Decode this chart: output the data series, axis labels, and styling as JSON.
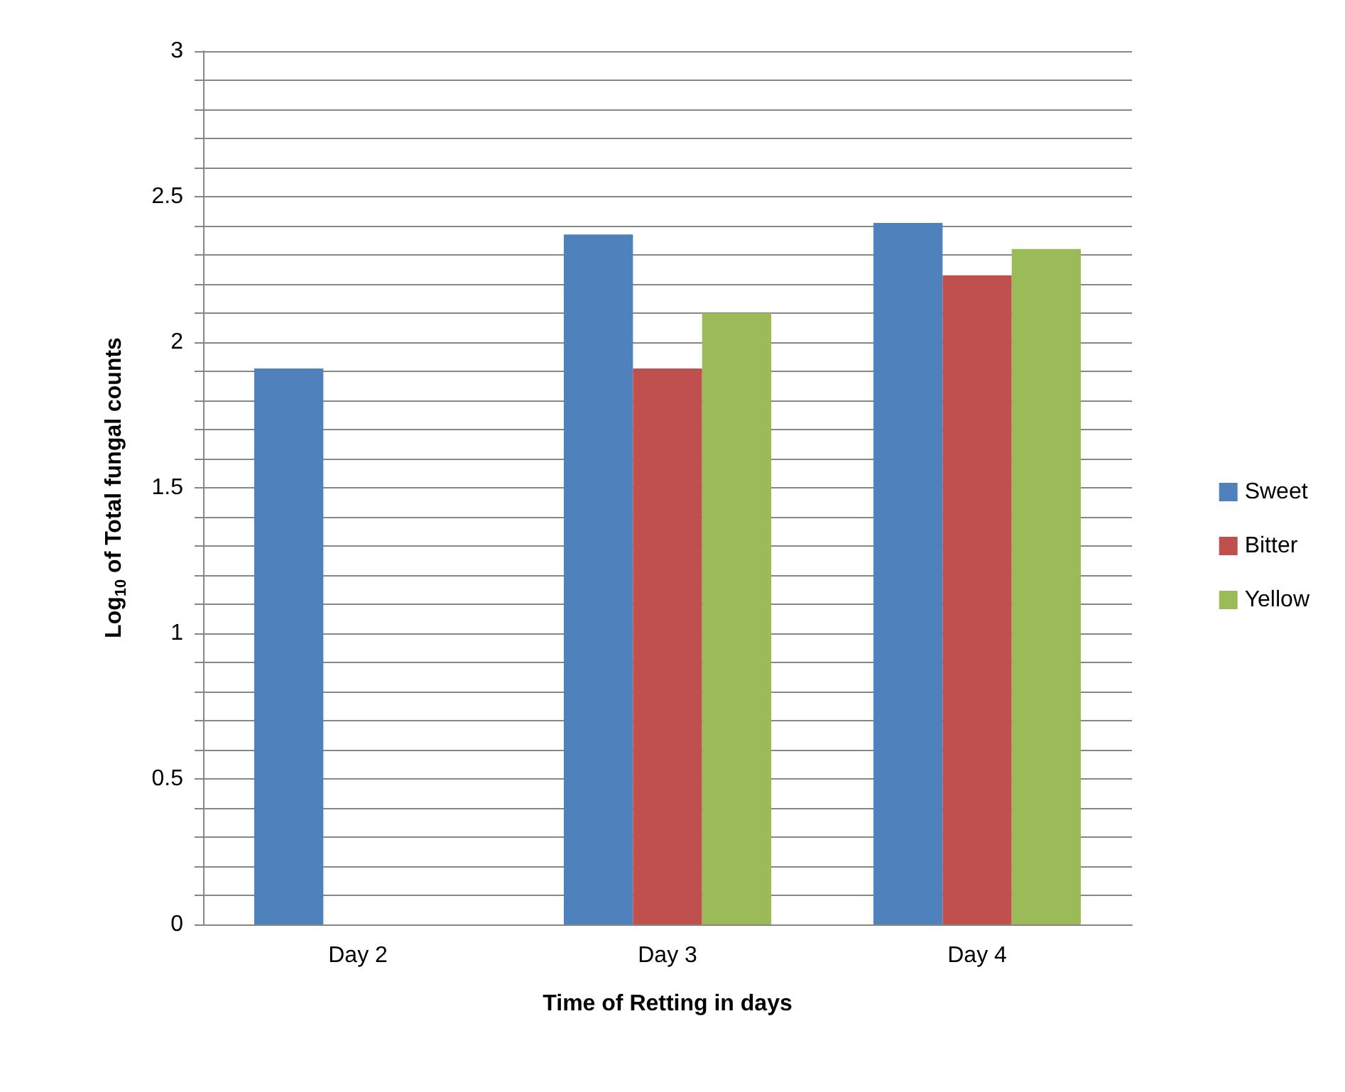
{
  "chart_data": {
    "type": "bar",
    "xlabel": "Time of Retting in days",
    "ylabel": "Log$_{10}$ of Total fungal counts",
    "categories": [
      "Day 2",
      "Day 3",
      "Day 4"
    ],
    "series": [
      {
        "name": "Sweet",
        "color": "#4f81bd",
        "values": [
          1.91,
          2.37,
          2.41
        ]
      },
      {
        "name": "Bitter",
        "color": "#c0504d",
        "values": [
          null,
          1.91,
          2.23
        ]
      },
      {
        "name": "Yellow",
        "color": "#9bbb59",
        "values": [
          null,
          2.1,
          2.32
        ]
      }
    ],
    "ylim": [
      0,
      3
    ],
    "yticks": [
      0,
      {
        "value": 0.1,
        "label": null
      },
      {
        "value": 0.2,
        "label": null
      },
      {
        "value": 0.3,
        "label": null
      },
      {
        "value": 0.4,
        "label": null
      },
      0.5,
      {
        "value": 0.6,
        "label": null
      },
      {
        "value": 0.7,
        "label": null
      },
      {
        "value": 0.8,
        "label": null
      },
      {
        "value": 0.9,
        "label": null
      },
      1,
      {
        "value": 1.1,
        "label": null
      },
      {
        "value": 1.2,
        "label": null
      },
      {
        "value": 1.3,
        "label": null
      },
      {
        "value": 1.4,
        "label": null
      },
      1.5,
      {
        "value": 1.6,
        "label": null
      },
      {
        "value": 1.7,
        "label": null
      },
      {
        "value": 1.8,
        "label": null
      },
      {
        "value": 1.9,
        "label": null
      },
      2,
      {
        "value": 2.1,
        "label": null
      },
      {
        "value": 2.2,
        "label": null
      },
      {
        "value": 2.3,
        "label": null
      },
      {
        "value": 2.4,
        "label": null
      },
      2.5,
      {
        "value": 2.6,
        "label": null
      },
      {
        "value": 2.7,
        "label": null
      },
      {
        "value": 2.8,
        "label": null
      },
      {
        "value": 2.9,
        "label": null
      },
      3
    ],
    "grid": "y",
    "legend": "right"
  }
}
